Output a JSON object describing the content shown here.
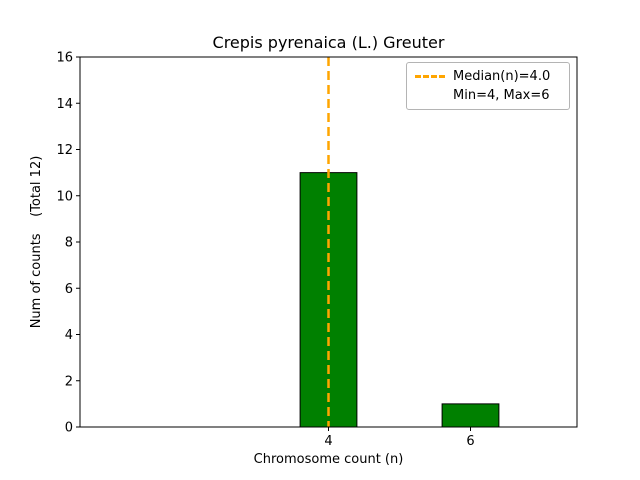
{
  "chart_data": {
    "type": "bar",
    "title": "Crepis pyrenaica (L.) Greuter",
    "xlabel": "Chromosome count (n)",
    "ylabel": "Num of counts    (Total 12)",
    "total_counts": 12,
    "x": [
      4,
      6
    ],
    "values": [
      11,
      1
    ],
    "bar_width": 0.8,
    "bar_color": "#008000",
    "bar_edge_color": "#000000",
    "median_line": {
      "x": 4.0,
      "color": "#FFA500",
      "style": "dashed",
      "width": 2.5
    },
    "xlim": [
      0.5,
      7.5
    ],
    "ylim": [
      0,
      16
    ],
    "xticks": [
      4,
      6
    ],
    "yticks": [
      0,
      2,
      4,
      6,
      8,
      10,
      12,
      14,
      16
    ],
    "grid": false,
    "legend_position": "upper right"
  },
  "legend": {
    "items": [
      {
        "label": "Median(n)=4.0",
        "sample": "dashed-orange-line",
        "color": "#FFA500"
      },
      {
        "label": "Min=4, Max=6",
        "sample": "none"
      }
    ]
  }
}
